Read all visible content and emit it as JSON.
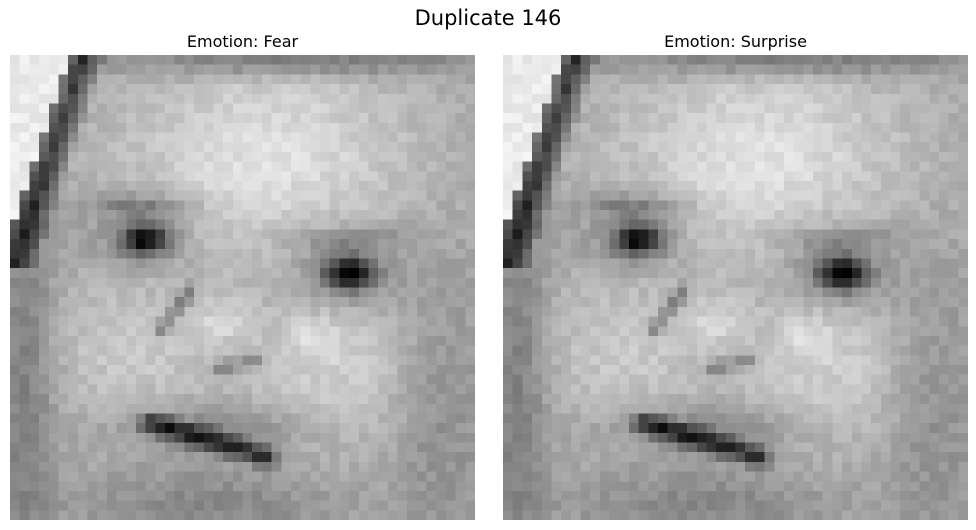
{
  "figure": {
    "title": "Duplicate 146"
  },
  "panels": [
    {
      "title": "Emotion: Fear",
      "image": "grayscale-baby-face-photo"
    },
    {
      "title": "Emotion: Surprise",
      "image": "grayscale-baby-face-photo"
    }
  ]
}
